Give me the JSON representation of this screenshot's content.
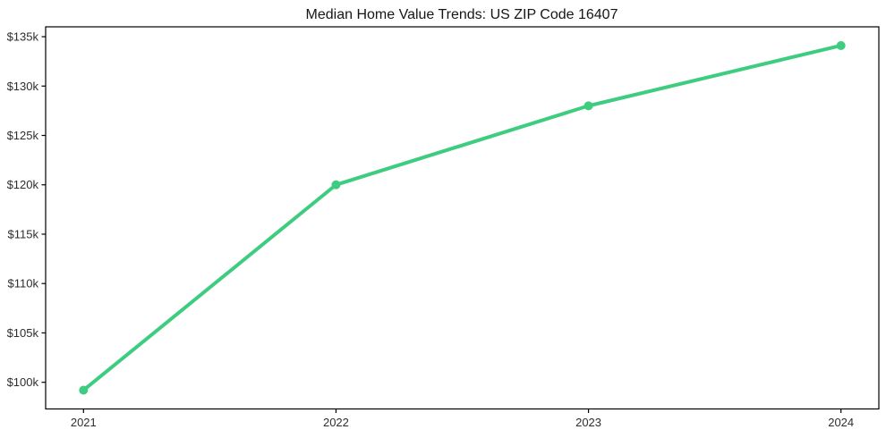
{
  "title": "Median Home Value Trends: US ZIP Code 16407",
  "colors": {
    "line": "#3ecd80",
    "marker": "#3ecd80",
    "axis": "#000000",
    "tick_text": "#2e2e2e",
    "title_text": "#161616",
    "background": "#ffffff"
  },
  "chart_data": {
    "type": "line",
    "title": "Median Home Value Trends: US ZIP Code 16407",
    "xlabel": "",
    "ylabel": "",
    "x": [
      2021,
      2022,
      2023,
      2024
    ],
    "series": [
      {
        "name": "Median Home Value",
        "values": [
          99200,
          120000,
          128000,
          134100
        ]
      }
    ],
    "x_ticks": [
      2021,
      2022,
      2023,
      2024
    ],
    "x_tick_labels": [
      "2021",
      "2022",
      "2023",
      "2024"
    ],
    "y_ticks": [
      100000,
      105000,
      110000,
      115000,
      120000,
      125000,
      130000,
      135000
    ],
    "y_tick_labels": [
      "$100k",
      "$105k",
      "$110k",
      "$115k",
      "$120k",
      "$125k",
      "$130k",
      "$135k"
    ],
    "xlim": [
      2020.85,
      2024.15
    ],
    "ylim": [
      97300,
      136000
    ],
    "grid": false,
    "legend": null,
    "marker": "circle",
    "line_style": "solid"
  }
}
